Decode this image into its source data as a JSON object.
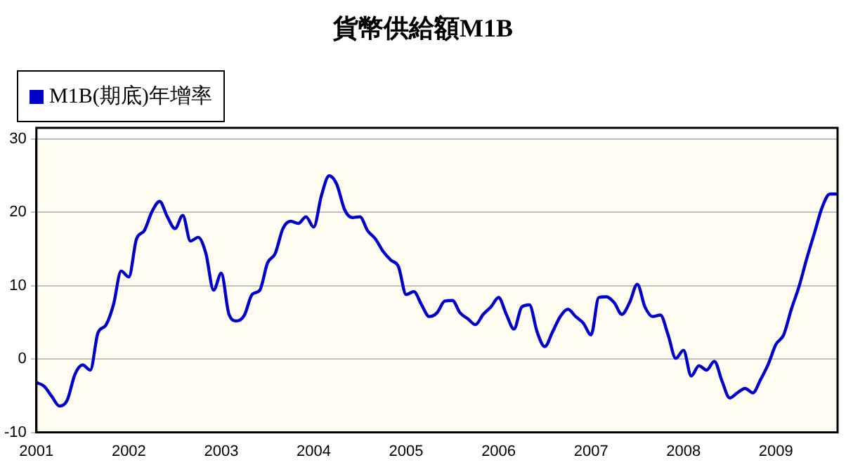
{
  "chart_data": {
    "type": "line",
    "title": "貨幣供給額M1B",
    "x": [
      "2001-01",
      "2001-02",
      "2001-03",
      "2001-04",
      "2001-05",
      "2001-06",
      "2001-07",
      "2001-08",
      "2001-09",
      "2001-10",
      "2001-11",
      "2001-12",
      "2002-01",
      "2002-02",
      "2002-03",
      "2002-04",
      "2002-05",
      "2002-06",
      "2002-07",
      "2002-08",
      "2002-09",
      "2002-10",
      "2002-11",
      "2002-12",
      "2003-01",
      "2003-02",
      "2003-03",
      "2003-04",
      "2003-05",
      "2003-06",
      "2003-07",
      "2003-08",
      "2003-09",
      "2003-10",
      "2003-11",
      "2003-12",
      "2004-01",
      "2004-02",
      "2004-03",
      "2004-04",
      "2004-05",
      "2004-06",
      "2004-07",
      "2004-08",
      "2004-09",
      "2004-10",
      "2004-11",
      "2004-12",
      "2005-01",
      "2005-02",
      "2005-03",
      "2005-04",
      "2005-05",
      "2005-06",
      "2005-07",
      "2005-08",
      "2005-09",
      "2005-10",
      "2005-11",
      "2005-12",
      "2006-01",
      "2006-02",
      "2006-03",
      "2006-04",
      "2006-05",
      "2006-06",
      "2006-07",
      "2006-08",
      "2006-09",
      "2006-10",
      "2006-11",
      "2006-12",
      "2007-01",
      "2007-02",
      "2007-03",
      "2007-04",
      "2007-05",
      "2007-06",
      "2007-07",
      "2007-08",
      "2007-09",
      "2007-10",
      "2007-11",
      "2007-12",
      "2008-01",
      "2008-02",
      "2008-03",
      "2008-04",
      "2008-05",
      "2008-06",
      "2008-07",
      "2008-08",
      "2008-09",
      "2008-10",
      "2008-11",
      "2008-12",
      "2009-01",
      "2009-02",
      "2009-03",
      "2009-04",
      "2009-05",
      "2009-06",
      "2009-07",
      "2009-08",
      "2009-09"
    ],
    "series": [
      {
        "name": "M1B(期底)年增率",
        "color": "#0000cc",
        "values": [
          -3.2,
          -3.7,
          -5.1,
          -6.4,
          -5.6,
          -2.1,
          -0.8,
          -1.5,
          3.6,
          4.6,
          7.4,
          12.0,
          11.2,
          16.4,
          17.5,
          20.1,
          21.5,
          19.4,
          17.8,
          19.6,
          16.1,
          16.6,
          14.4,
          9.4,
          11.7,
          6.1,
          5.2,
          6.0,
          8.8,
          9.4,
          13.1,
          14.4,
          17.8,
          18.8,
          18.5,
          19.4,
          18.0,
          22.3,
          25.0,
          23.8,
          20.4,
          19.3,
          19.4,
          17.5,
          16.4,
          14.7,
          13.5,
          12.6,
          8.8,
          9.2,
          7.4,
          5.8,
          6.3,
          7.9,
          8.0,
          6.3,
          5.5,
          4.7,
          6.1,
          7.1,
          8.4,
          6.1,
          4.1,
          7.1,
          7.4,
          3.7,
          1.7,
          3.7,
          5.8,
          6.8,
          5.8,
          4.9,
          3.3,
          8.4,
          8.5,
          7.7,
          6.1,
          7.7,
          10.2,
          7.1,
          5.8,
          6.0,
          3.3,
          0.1,
          1.2,
          -2.3,
          -0.9,
          -1.5,
          -0.3,
          -3.0,
          -5.3,
          -4.6,
          -4.0,
          -4.6,
          -2.8,
          -0.7,
          2.0,
          3.3,
          6.8,
          9.9,
          13.7,
          17.2,
          20.7,
          22.5,
          22.5
        ]
      }
    ],
    "xlim": [
      "2001-01",
      "2009-09"
    ],
    "xticks": [
      "2001",
      "2002",
      "2003",
      "2004",
      "2005",
      "2006",
      "2007",
      "2008",
      "2009"
    ],
    "ylim": [
      -10,
      30
    ],
    "yticks": [
      -10,
      0,
      10,
      20,
      30
    ],
    "grid": "y",
    "legend": "top left",
    "marker": "none",
    "line_style": "solid"
  }
}
